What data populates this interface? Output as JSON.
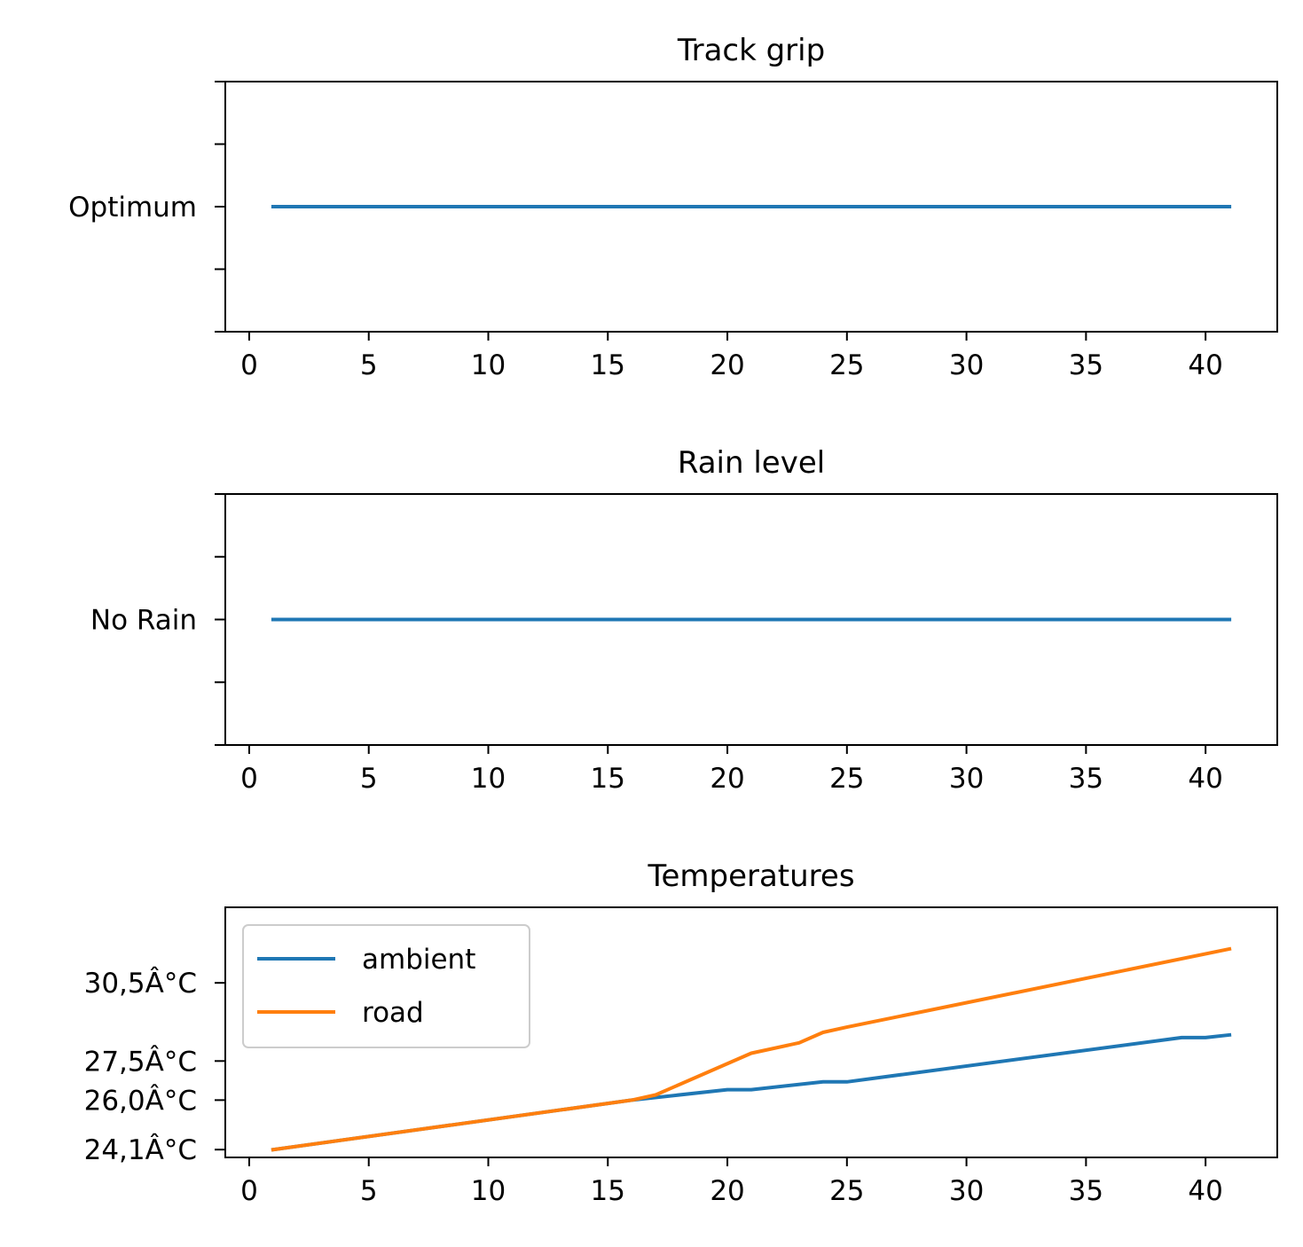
{
  "chart_data": [
    {
      "type": "line",
      "title": "Track grip",
      "xlabel": "",
      "ylabel": "",
      "xlim": [
        -1,
        43
      ],
      "x_ticks": [
        0,
        5,
        10,
        15,
        20,
        25,
        30,
        35,
        40
      ],
      "ylim": [
        -1,
        1
      ],
      "y_ticks": [
        -1,
        -0.5,
        0,
        0.5,
        1
      ],
      "y_tick_labels": [
        "",
        "",
        "Optimum",
        "",
        ""
      ],
      "legend": null,
      "grid": false,
      "series": [
        {
          "color": "#1f77b4",
          "x": [
            1,
            41
          ],
          "y": [
            0,
            0
          ]
        }
      ]
    },
    {
      "type": "line",
      "title": "Rain level",
      "xlabel": "",
      "ylabel": "",
      "xlim": [
        -1,
        43
      ],
      "x_ticks": [
        0,
        5,
        10,
        15,
        20,
        25,
        30,
        35,
        40
      ],
      "ylim": [
        -1,
        1
      ],
      "y_ticks": [
        -1,
        -0.5,
        0,
        0.5,
        1
      ],
      "y_tick_labels": [
        "",
        "",
        "No Rain",
        "",
        ""
      ],
      "legend": null,
      "grid": false,
      "series": [
        {
          "color": "#1f77b4",
          "x": [
            1,
            41
          ],
          "y": [
            0,
            0
          ]
        }
      ]
    },
    {
      "type": "line",
      "title": "Temperatures",
      "xlabel": "",
      "ylabel": "",
      "xlim": [
        -1,
        43
      ],
      "x_ticks": [
        0,
        5,
        10,
        15,
        20,
        25,
        30,
        35,
        40
      ],
      "ylim": [
        23.8,
        33.4
      ],
      "y_ticks": [
        24.1,
        26.0,
        27.5,
        30.5
      ],
      "y_tick_labels": [
        "24,1Â°C",
        "26,0Â°C",
        "27,5Â°C",
        "30,5Â°C"
      ],
      "legend": "upper left",
      "grid": false,
      "series": [
        {
          "name": "ambient",
          "color": "#1f77b4",
          "x": [
            1,
            16,
            20,
            21,
            24,
            25,
            39,
            40,
            41
          ],
          "y": [
            24.1,
            26.0,
            26.4,
            26.4,
            26.7,
            26.7,
            28.4,
            28.4,
            28.5
          ]
        },
        {
          "name": "road",
          "color": "#ff7f0e",
          "x": [
            1,
            16,
            17,
            21,
            23,
            24,
            25,
            41
          ],
          "y": [
            24.1,
            26.0,
            26.2,
            27.8,
            28.2,
            28.6,
            28.8,
            31.8
          ]
        }
      ]
    }
  ]
}
